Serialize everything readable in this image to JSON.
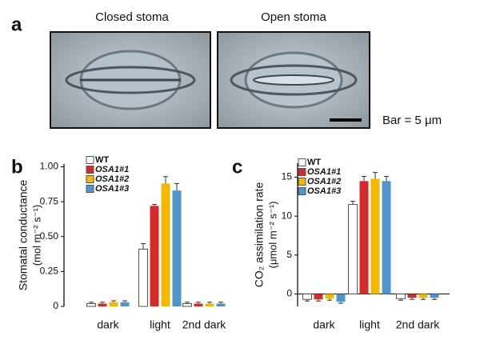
{
  "figure_a": {
    "panel_label": "a",
    "images": [
      {
        "caption": "Closed stoma"
      },
      {
        "caption": "Open stoma"
      }
    ],
    "scale_bar": "Bar = 5 μm"
  },
  "chart_data": [
    {
      "type": "bar",
      "panel_label": "b",
      "y_label": "Stomatal conductance",
      "y_unit": "(mol m⁻² s⁻¹)",
      "categories": [
        "dark",
        "light",
        "2nd dark"
      ],
      "series": [
        {
          "name": "WT",
          "color": "#ffffff",
          "values": [
            0.02,
            0.41,
            0.02
          ],
          "errors": [
            0.01,
            0.04,
            0.01
          ]
        },
        {
          "name": "OSA1#1",
          "color": "#d42a2a",
          "values": [
            0.02,
            0.72,
            0.02
          ],
          "errors": [
            0.01,
            0.01,
            0.01
          ]
        },
        {
          "name": "OSA1#2",
          "color": "#f5b800",
          "values": [
            0.03,
            0.88,
            0.02
          ],
          "errors": [
            0.01,
            0.05,
            0.01
          ]
        },
        {
          "name": "OSA1#3",
          "color": "#4f94cd",
          "values": [
            0.03,
            0.83,
            0.02
          ],
          "errors": [
            0.01,
            0.05,
            0.01
          ]
        }
      ],
      "ylim": [
        0,
        1.02
      ],
      "yticks": [
        0,
        0.25,
        {
          "value": 0.5,
          "label": "0.50"
        },
        0.75,
        {
          "value": 1,
          "label": "1.00"
        }
      ],
      "zero_line": false
    },
    {
      "type": "bar",
      "panel_label": "c",
      "y_label": "CO₂ assimilation rate",
      "y_unit": "(μmol m⁻² s⁻¹)",
      "categories": [
        "dark",
        "light",
        "2nd dark"
      ],
      "series": [
        {
          "name": "WT",
          "color": "#ffffff",
          "values": [
            -0.7,
            11.5,
            -0.6
          ],
          "errors": [
            0.2,
            0.4,
            0.2
          ]
        },
        {
          "name": "OSA1#1",
          "color": "#d42a2a",
          "values": [
            -0.7,
            14.5,
            -0.5
          ],
          "errors": [
            0.2,
            0.6,
            0.2
          ]
        },
        {
          "name": "OSA1#2",
          "color": "#f5b800",
          "values": [
            -0.6,
            14.8,
            -0.5
          ],
          "errors": [
            0.2,
            0.8,
            0.2
          ]
        },
        {
          "name": "OSA1#3",
          "color": "#4f94cd",
          "values": [
            -1.0,
            14.5,
            -0.5
          ],
          "errors": [
            0.2,
            0.6,
            0.2
          ]
        }
      ],
      "ylim": [
        -1.6,
        16.8
      ],
      "yticks": [
        0,
        5,
        10,
        15
      ],
      "zero_line": true
    }
  ]
}
